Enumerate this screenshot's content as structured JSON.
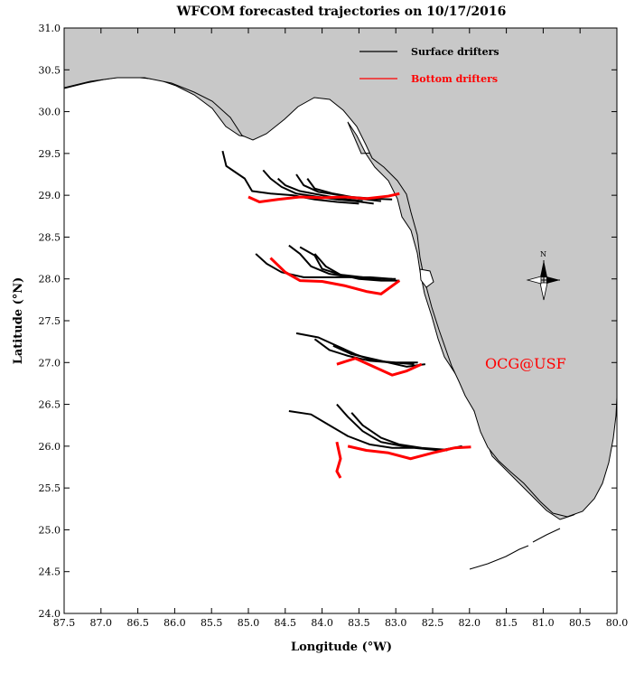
{
  "title": "WFCOM forecasted trajectories on 10/17/2016",
  "xlabel": "Longitude (°W)",
  "ylabel": "Latitude (°N)",
  "x_ticks": [
    "87.5",
    "87.0",
    "86.5",
    "86.0",
    "85.5",
    "85.0",
    "84.5",
    "84.0",
    "83.5",
    "83.0",
    "82.5",
    "82.0",
    "81.5",
    "81.0",
    "80.5",
    "80.0"
  ],
  "y_ticks": [
    "31.0",
    "30.5",
    "30.0",
    "29.5",
    "29.0",
    "28.5",
    "28.0",
    "27.5",
    "27.0",
    "26.5",
    "26.0",
    "25.5",
    "25.0",
    "24.5",
    "24.0"
  ],
  "legend": {
    "surface_label": "Surface drifters",
    "bottom_label": "Bottom drifters",
    "position": "top-right"
  },
  "watermark": "OCG@USF",
  "north_arrow_label": "N",
  "colors": {
    "land": "#c8c8c8",
    "surface": "#000000",
    "bottom": "#ff0000",
    "watermark": "#ff0000"
  },
  "chart_data": {
    "type": "map",
    "lon_range": [
      -87.5,
      -80.0
    ],
    "lat_range": [
      24.0,
      31.0
    ],
    "series": [
      {
        "name": "Surface drifters",
        "color": "#000000",
        "tracks": [
          [
            [
              -85.35,
              29.53
            ],
            [
              -85.3,
              29.35
            ],
            [
              -85.05,
              29.2
            ],
            [
              -84.95,
              29.05
            ],
            [
              -84.7,
              29.02
            ],
            [
              -84.4,
              29.0
            ],
            [
              -84.1,
              28.95
            ],
            [
              -83.8,
              28.92
            ],
            [
              -83.5,
              28.9
            ]
          ],
          [
            [
              -84.8,
              29.3
            ],
            [
              -84.7,
              29.2
            ],
            [
              -84.55,
              29.1
            ],
            [
              -84.35,
              29.02
            ],
            [
              -84.05,
              28.98
            ],
            [
              -83.8,
              28.95
            ],
            [
              -83.55,
              28.93
            ],
            [
              -83.3,
              28.9
            ]
          ],
          [
            [
              -84.6,
              29.2
            ],
            [
              -84.5,
              29.12
            ],
            [
              -84.3,
              29.05
            ],
            [
              -84.0,
              29.0
            ],
            [
              -83.75,
              28.96
            ],
            [
              -83.45,
              28.93
            ]
          ],
          [
            [
              -84.35,
              29.25
            ],
            [
              -84.25,
              29.12
            ],
            [
              -84.05,
              29.04
            ],
            [
              -83.75,
              29.0
            ],
            [
              -83.5,
              28.96
            ],
            [
              -83.2,
              28.93
            ]
          ],
          [
            [
              -84.2,
              29.2
            ],
            [
              -84.1,
              29.08
            ],
            [
              -83.85,
              29.02
            ],
            [
              -83.6,
              28.98
            ],
            [
              -83.3,
              28.96
            ],
            [
              -83.05,
              28.95
            ]
          ],
          [
            [
              -84.9,
              28.3
            ],
            [
              -84.75,
              28.18
            ],
            [
              -84.55,
              28.08
            ],
            [
              -84.25,
              28.02
            ],
            [
              -83.95,
              28.02
            ],
            [
              -83.65,
              28.02
            ],
            [
              -83.35,
              28.02
            ],
            [
              -83.05,
              28.0
            ]
          ],
          [
            [
              -84.45,
              28.4
            ],
            [
              -84.3,
              28.3
            ],
            [
              -84.15,
              28.15
            ],
            [
              -83.9,
              28.06
            ],
            [
              -83.6,
              28.02
            ],
            [
              -83.3,
              28.0
            ],
            [
              -83.0,
              28.0
            ]
          ],
          [
            [
              -84.3,
              28.38
            ],
            [
              -84.1,
              28.28
            ],
            [
              -84.0,
              28.12
            ],
            [
              -83.75,
              28.05
            ],
            [
              -83.45,
              28.02
            ],
            [
              -83.15,
              28.0
            ]
          ],
          [
            [
              -84.1,
              28.3
            ],
            [
              -83.95,
              28.15
            ],
            [
              -83.75,
              28.05
            ],
            [
              -83.5,
              28.0
            ],
            [
              -83.2,
              27.98
            ],
            [
              -82.95,
              27.98
            ]
          ],
          [
            [
              -84.35,
              27.35
            ],
            [
              -84.05,
              27.3
            ],
            [
              -83.8,
              27.2
            ],
            [
              -83.55,
              27.1
            ],
            [
              -83.3,
              27.02
            ],
            [
              -83.0,
              27.0
            ],
            [
              -82.7,
              27.0
            ]
          ],
          [
            [
              -84.1,
              27.28
            ],
            [
              -83.9,
              27.15
            ],
            [
              -83.65,
              27.08
            ],
            [
              -83.35,
              27.02
            ],
            [
              -83.05,
              27.0
            ],
            [
              -82.75,
              26.98
            ]
          ],
          [
            [
              -83.85,
              27.2
            ],
            [
              -83.6,
              27.1
            ],
            [
              -83.35,
              27.05
            ],
            [
              -83.1,
              27.0
            ],
            [
              -82.85,
              26.95
            ],
            [
              -82.6,
              26.98
            ]
          ],
          [
            [
              -84.45,
              26.42
            ],
            [
              -84.15,
              26.38
            ],
            [
              -83.9,
              26.25
            ],
            [
              -83.65,
              26.12
            ],
            [
              -83.35,
              26.02
            ],
            [
              -83.05,
              25.98
            ],
            [
              -82.75,
              25.98
            ],
            [
              -82.4,
              25.95
            ],
            [
              -82.1,
              26.0
            ]
          ],
          [
            [
              -83.8,
              26.5
            ],
            [
              -83.65,
              26.35
            ],
            [
              -83.45,
              26.18
            ],
            [
              -83.2,
              26.05
            ],
            [
              -82.9,
              26.0
            ],
            [
              -82.6,
              25.97
            ],
            [
              -82.3,
              25.95
            ]
          ],
          [
            [
              -83.6,
              26.4
            ],
            [
              -83.45,
              26.25
            ],
            [
              -83.2,
              26.1
            ],
            [
              -82.95,
              26.02
            ],
            [
              -82.65,
              25.98
            ],
            [
              -82.35,
              25.96
            ]
          ]
        ]
      },
      {
        "name": "Bottom drifters",
        "color": "#ff0000",
        "tracks": [
          [
            [
              -85.0,
              28.98
            ],
            [
              -84.85,
              28.92
            ],
            [
              -84.6,
              28.95
            ],
            [
              -84.3,
              28.98
            ],
            [
              -84.0,
              28.97
            ],
            [
              -83.7,
              28.98
            ],
            [
              -83.4,
              28.96
            ],
            [
              -83.1,
              28.99
            ],
            [
              -82.95,
              29.02
            ]
          ],
          [
            [
              -84.7,
              28.25
            ],
            [
              -84.5,
              28.08
            ],
            [
              -84.3,
              27.98
            ],
            [
              -84.0,
              27.97
            ],
            [
              -83.7,
              27.92
            ],
            [
              -83.4,
              27.85
            ],
            [
              -83.2,
              27.82
            ],
            [
              -82.95,
              27.98
            ]
          ],
          [
            [
              -83.8,
              26.98
            ],
            [
              -83.55,
              27.05
            ],
            [
              -83.3,
              26.95
            ],
            [
              -83.05,
              26.85
            ],
            [
              -82.85,
              26.9
            ],
            [
              -82.65,
              26.98
            ]
          ],
          [
            [
              -83.8,
              26.05
            ],
            [
              -83.75,
              25.85
            ],
            [
              -83.8,
              25.7
            ],
            [
              -83.75,
              25.62
            ]
          ],
          [
            [
              -83.65,
              26.0
            ],
            [
              -83.4,
              25.95
            ],
            [
              -83.1,
              25.92
            ],
            [
              -82.8,
              25.85
            ],
            [
              -82.5,
              25.92
            ],
            [
              -82.2,
              25.98
            ],
            [
              -81.98,
              25.99
            ]
          ]
        ]
      }
    ],
    "grid": false
  }
}
